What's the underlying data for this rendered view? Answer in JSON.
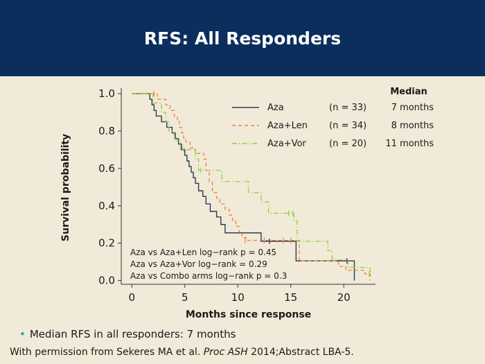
{
  "slide": {
    "title": "RFS: All Responders",
    "bullet_text": "Median RFS in all responders: 7 months",
    "citation_prefix": "With permission from Sekeres MA et al. ",
    "citation_journal": "Proc ASH",
    "citation_suffix": " 2014;Abstract LBA-5."
  },
  "colors": {
    "header_bg": "#0b2e5c",
    "background": "#f1ead8",
    "Aza": "#2e3a52",
    "Aza+Len": "#f07c3a",
    "Aza+Vor": "#8fcf3c",
    "bullet": "#2aa3a0"
  },
  "chart_data": {
    "type": "line",
    "subtype": "kaplan-meier-step",
    "xlabel": "Months since response",
    "ylabel": "Survival probability",
    "xlim": [
      -1,
      23
    ],
    "ylim": [
      -0.02,
      1.03
    ],
    "xticks": [
      0,
      5,
      10,
      15,
      20
    ],
    "yticks": [
      0.0,
      0.2,
      0.4,
      0.6,
      0.8,
      1.0
    ],
    "ytick_labels": [
      "0.0",
      "0.2",
      "0.4",
      "0.6",
      "0.8",
      "1.0"
    ],
    "legend": {
      "header": "Median",
      "placement": "top-right",
      "rows": [
        {
          "series": "Aza",
          "n": "(n = 33)",
          "median": "7 months"
        },
        {
          "series": "Aza+Len",
          "n": "(n = 34)",
          "median": "8 months"
        },
        {
          "series": "Aza+Vor",
          "n": "(n = 20)",
          "median": "11 months"
        }
      ]
    },
    "annotations": [
      "Aza vs Aza+Len log−rank p =  0.45",
      "Aza vs Aza+Vor log−rank =  0.29",
      "Aza vs Combo arms log−rank p = 0.3"
    ],
    "series": [
      {
        "name": "Aza",
        "style": "solid",
        "points": [
          [
            0,
            1.0
          ],
          [
            1.5,
            1.0
          ],
          [
            1.7,
            0.97
          ],
          [
            1.9,
            0.94
          ],
          [
            2.1,
            0.91
          ],
          [
            2.3,
            0.88
          ],
          [
            2.8,
            0.85
          ],
          [
            3.3,
            0.82
          ],
          [
            3.8,
            0.79
          ],
          [
            4.1,
            0.76
          ],
          [
            4.4,
            0.73
          ],
          [
            4.7,
            0.7
          ],
          [
            5.0,
            0.67
          ],
          [
            5.2,
            0.64
          ],
          [
            5.4,
            0.61
          ],
          [
            5.6,
            0.58
          ],
          [
            5.8,
            0.55
          ],
          [
            6.0,
            0.52
          ],
          [
            6.3,
            0.48
          ],
          [
            6.7,
            0.45
          ],
          [
            7.0,
            0.41
          ],
          [
            7.4,
            0.37
          ],
          [
            8.0,
            0.34
          ],
          [
            8.4,
            0.3
          ],
          [
            8.8,
            0.255
          ],
          [
            12.2,
            0.21
          ],
          [
            15.5,
            0.105
          ],
          [
            21.0,
            0.0
          ]
        ],
        "end_x": 21.0,
        "censor_marks": [
          [
            13.0,
            0.21
          ],
          [
            20.3,
            0.105
          ]
        ]
      },
      {
        "name": "Aza+Len",
        "style": "dashed",
        "points": [
          [
            0,
            1.0
          ],
          [
            2.2,
            1.0
          ],
          [
            2.4,
            0.97
          ],
          [
            3.2,
            0.94
          ],
          [
            3.6,
            0.91
          ],
          [
            4.0,
            0.88
          ],
          [
            4.3,
            0.85
          ],
          [
            4.5,
            0.82
          ],
          [
            4.7,
            0.79
          ],
          [
            4.9,
            0.76
          ],
          [
            5.1,
            0.74
          ],
          [
            5.5,
            0.71
          ],
          [
            6.0,
            0.68
          ],
          [
            6.8,
            0.65
          ],
          [
            7.0,
            0.59
          ],
          [
            7.3,
            0.53
          ],
          [
            7.6,
            0.47
          ],
          [
            8.0,
            0.44
          ],
          [
            8.3,
            0.41
          ],
          [
            8.8,
            0.38
          ],
          [
            9.2,
            0.35
          ],
          [
            9.5,
            0.32
          ],
          [
            9.8,
            0.29
          ],
          [
            10.1,
            0.26
          ],
          [
            10.4,
            0.23
          ],
          [
            10.8,
            0.215
          ],
          [
            15.8,
            0.105
          ],
          [
            19.5,
            0.075
          ],
          [
            20.2,
            0.055
          ],
          [
            22.0,
            0.035
          ],
          [
            22.5,
            0.0
          ]
        ],
        "end_x": 22.5,
        "censor_marks": [
          [
            2.1,
            1.0
          ],
          [
            10.7,
            0.215
          ],
          [
            12.5,
            0.215
          ],
          [
            14.3,
            0.215
          ],
          [
            15.0,
            0.215
          ]
        ]
      },
      {
        "name": "Aza+Vor",
        "style": "dashdot",
        "points": [
          [
            0,
            1.0
          ],
          [
            1.8,
            1.0
          ],
          [
            2.0,
            0.95
          ],
          [
            2.8,
            0.9
          ],
          [
            3.2,
            0.85
          ],
          [
            3.5,
            0.8
          ],
          [
            4.0,
            0.75
          ],
          [
            4.6,
            0.7
          ],
          [
            6.0,
            0.65
          ],
          [
            6.3,
            0.59
          ],
          [
            8.5,
            0.53
          ],
          [
            11.0,
            0.47
          ],
          [
            12.2,
            0.42
          ],
          [
            12.9,
            0.36
          ],
          [
            15.3,
            0.32
          ],
          [
            15.6,
            0.21
          ],
          [
            18.5,
            0.16
          ],
          [
            18.9,
            0.11
          ],
          [
            20.4,
            0.07
          ],
          [
            22.5,
            0.035
          ]
        ],
        "end_x": 22.5,
        "censor_marks": [
          [
            4.9,
            0.7
          ],
          [
            6.5,
            0.59
          ],
          [
            14.8,
            0.36
          ],
          [
            15.2,
            0.36
          ],
          [
            22.4,
            0.035
          ]
        ]
      }
    ]
  }
}
